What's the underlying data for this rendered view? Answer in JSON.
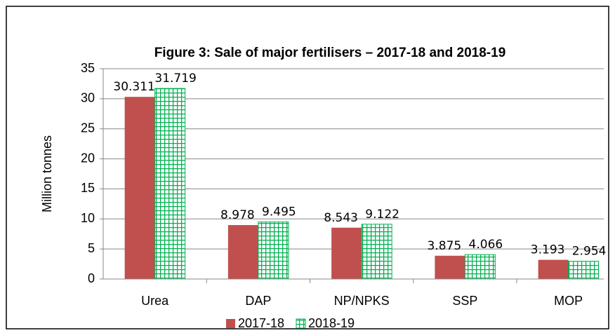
{
  "chart_data": {
    "type": "bar",
    "title": "Figure 3: Sale of major fertilisers – 2017-18 and 2018-19",
    "y_label": "Million tonnes",
    "categories": [
      "Urea",
      "DAP",
      "NP/NPKS",
      "SSP",
      "MOP"
    ],
    "series": [
      {
        "name": "2017-18",
        "color": "#c0504d",
        "values": [
          30.311,
          8.978,
          8.543,
          3.875,
          3.193
        ]
      },
      {
        "name": "2018-19",
        "color": "#00b050",
        "values": [
          31.719,
          9.495,
          9.122,
          4.066,
          2.954
        ]
      }
    ],
    "ylim": [
      0,
      35
    ],
    "yticks": [
      0,
      5,
      10,
      15,
      20,
      25,
      30,
      35
    ],
    "grid": true,
    "legend": "bottom"
  }
}
